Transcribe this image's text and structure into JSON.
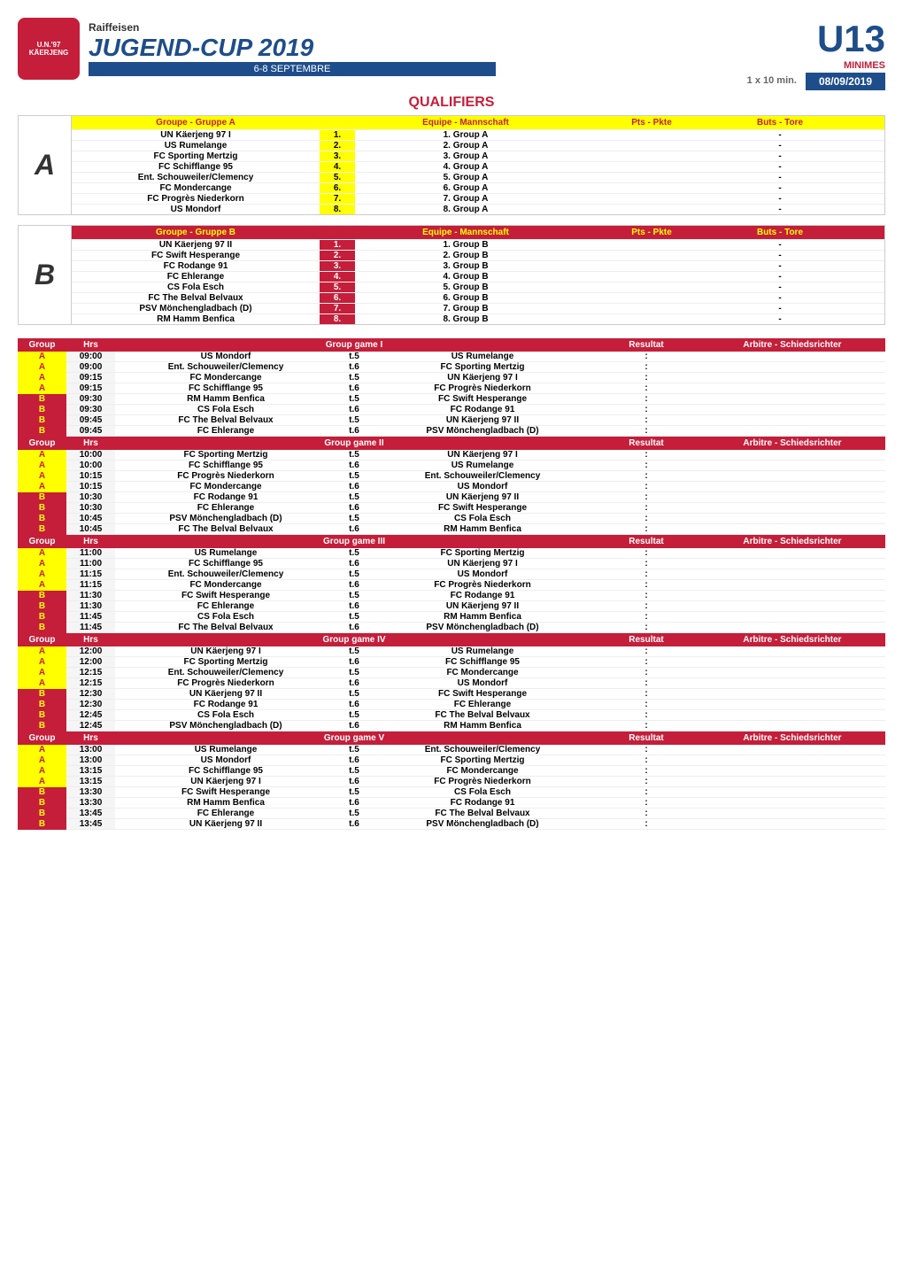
{
  "header": {
    "logo_line1": "U.N.'97",
    "logo_line2": "KÄERJENG",
    "sponsor": "Raiffeisen",
    "title": "JUGEND-CUP 2019",
    "dates_banner": "6-8 SEPTEMBRE",
    "age": "U13",
    "category": "MINIMES",
    "duration": "1 x 10 min.",
    "date": "08/09/2019",
    "section_title": "QUALIFIERS"
  },
  "group_headers": {
    "groupe": "Groupe - Gruppe",
    "equipe": "Equipe - Mannschaft",
    "pts": "Pts - Pkte",
    "buts": "Buts - Tore"
  },
  "groupA": {
    "letter": "A",
    "name": "Groupe - Gruppe A",
    "teams": [
      {
        "n": "1.",
        "name": "UN Käerjeng 97  I",
        "eq": "1. Group A",
        "buts": "-"
      },
      {
        "n": "2.",
        "name": "US Rumelange",
        "eq": "2. Group A",
        "buts": "-"
      },
      {
        "n": "3.",
        "name": "FC Sporting Mertzig",
        "eq": "3. Group A",
        "buts": "-"
      },
      {
        "n": "4.",
        "name": "FC Schifflange 95",
        "eq": "4. Group A",
        "buts": "-"
      },
      {
        "n": "5.",
        "name": "Ent. Schouweiler/Clemency",
        "eq": "5. Group A",
        "buts": "-"
      },
      {
        "n": "6.",
        "name": "FC Mondercange",
        "eq": "6. Group A",
        "buts": "-"
      },
      {
        "n": "7.",
        "name": "FC Progrès Niederkorn",
        "eq": "7. Group A",
        "buts": "-"
      },
      {
        "n": "8.",
        "name": "US Mondorf",
        "eq": "8. Group A",
        "buts": "-"
      }
    ]
  },
  "groupB": {
    "letter": "B",
    "name": "Groupe - Gruppe B",
    "teams": [
      {
        "n": "1.",
        "name": "UN Käerjeng 97  II",
        "eq": "1. Group B",
        "buts": "-"
      },
      {
        "n": "2.",
        "name": "FC Swift Hesperange",
        "eq": "2. Group B",
        "buts": "-"
      },
      {
        "n": "3.",
        "name": "FC Rodange 91",
        "eq": "3. Group B",
        "buts": "-"
      },
      {
        "n": "4.",
        "name": "FC Ehlerange",
        "eq": "4. Group B",
        "buts": "-"
      },
      {
        "n": "5.",
        "name": "CS Fola Esch",
        "eq": "5. Group B",
        "buts": "-"
      },
      {
        "n": "6.",
        "name": "FC The Belval Belvaux",
        "eq": "6. Group B",
        "buts": "-"
      },
      {
        "n": "7.",
        "name": "PSV Mönchengladbach (D)",
        "eq": "7. Group B",
        "buts": "-"
      },
      {
        "n": "8.",
        "name": "RM Hamm Benfica",
        "eq": "8. Group B",
        "buts": "-"
      }
    ]
  },
  "sched_headers": {
    "group": "Group",
    "hrs": "Hrs",
    "resultat": "Resultat",
    "arbitre": "Arbitre - Schiedsrichter"
  },
  "games": [
    {
      "title": "Group game I",
      "rows": [
        {
          "g": "A",
          "h": "09:00",
          "t1": "US Mondorf",
          "f": "t.5",
          "t2": "US Rumelange",
          "r": ":"
        },
        {
          "g": "A",
          "h": "09:00",
          "t1": "Ent. Schouweiler/Clemency",
          "f": "t.6",
          "t2": "FC Sporting Mertzig",
          "r": ":"
        },
        {
          "g": "A",
          "h": "09:15",
          "t1": "FC Mondercange",
          "f": "t.5",
          "t2": "UN Käerjeng 97  I",
          "r": ":"
        },
        {
          "g": "A",
          "h": "09:15",
          "t1": "FC Schifflange 95",
          "f": "t.6",
          "t2": "FC Progrès Niederkorn",
          "r": ":"
        },
        {
          "g": "B",
          "h": "09:30",
          "t1": "RM Hamm Benfica",
          "f": "t.5",
          "t2": "FC Swift Hesperange",
          "r": ":"
        },
        {
          "g": "B",
          "h": "09:30",
          "t1": "CS Fola Esch",
          "f": "t.6",
          "t2": "FC Rodange 91",
          "r": ":"
        },
        {
          "g": "B",
          "h": "09:45",
          "t1": "FC The Belval Belvaux",
          "f": "t.5",
          "t2": "UN Käerjeng 97  II",
          "r": ":"
        },
        {
          "g": "B",
          "h": "09:45",
          "t1": "FC Ehlerange",
          "f": "t.6",
          "t2": "PSV Mönchengladbach (D)",
          "r": ":"
        }
      ]
    },
    {
      "title": "Group game II",
      "rows": [
        {
          "g": "A",
          "h": "10:00",
          "t1": "FC Sporting Mertzig",
          "f": "t.5",
          "t2": "UN Käerjeng 97  I",
          "r": ":"
        },
        {
          "g": "A",
          "h": "10:00",
          "t1": "FC Schifflange 95",
          "f": "t.6",
          "t2": "US Rumelange",
          "r": ":"
        },
        {
          "g": "A",
          "h": "10:15",
          "t1": "FC Progrès Niederkorn",
          "f": "t.5",
          "t2": "Ent. Schouweiler/Clemency",
          "r": ":"
        },
        {
          "g": "A",
          "h": "10:15",
          "t1": "FC Mondercange",
          "f": "t.6",
          "t2": "US Mondorf",
          "r": ":"
        },
        {
          "g": "B",
          "h": "10:30",
          "t1": "FC Rodange 91",
          "f": "t.5",
          "t2": "UN Käerjeng 97  II",
          "r": ":"
        },
        {
          "g": "B",
          "h": "10:30",
          "t1": "FC Ehlerange",
          "f": "t.6",
          "t2": "FC Swift Hesperange",
          "r": ":"
        },
        {
          "g": "B",
          "h": "10:45",
          "t1": "PSV Mönchengladbach (D)",
          "f": "t.5",
          "t2": "CS Fola Esch",
          "r": ":"
        },
        {
          "g": "B",
          "h": "10:45",
          "t1": "FC The Belval Belvaux",
          "f": "t.6",
          "t2": "RM Hamm Benfica",
          "r": ":"
        }
      ]
    },
    {
      "title": "Group game III",
      "rows": [
        {
          "g": "A",
          "h": "11:00",
          "t1": "US Rumelange",
          "f": "t.5",
          "t2": "FC Sporting Mertzig",
          "r": ":"
        },
        {
          "g": "A",
          "h": "11:00",
          "t1": "FC Schifflange 95",
          "f": "t.6",
          "t2": "UN Käerjeng 97  I",
          "r": ":"
        },
        {
          "g": "A",
          "h": "11:15",
          "t1": "Ent. Schouweiler/Clemency",
          "f": "t.5",
          "t2": "US Mondorf",
          "r": ":"
        },
        {
          "g": "A",
          "h": "11:15",
          "t1": "FC Mondercange",
          "f": "t.6",
          "t2": "FC Progrès Niederkorn",
          "r": ":"
        },
        {
          "g": "B",
          "h": "11:30",
          "t1": "FC Swift Hesperange",
          "f": "t.5",
          "t2": "FC Rodange 91",
          "r": ":"
        },
        {
          "g": "B",
          "h": "11:30",
          "t1": "FC Ehlerange",
          "f": "t.6",
          "t2": "UN Käerjeng 97  II",
          "r": ":"
        },
        {
          "g": "B",
          "h": "11:45",
          "t1": "CS Fola Esch",
          "f": "t.5",
          "t2": "RM Hamm Benfica",
          "r": ":"
        },
        {
          "g": "B",
          "h": "11:45",
          "t1": "FC The Belval Belvaux",
          "f": "t.6",
          "t2": "PSV Mönchengladbach (D)",
          "r": ":"
        }
      ]
    },
    {
      "title": "Group game IV",
      "rows": [
        {
          "g": "A",
          "h": "12:00",
          "t1": "UN Käerjeng 97  I",
          "f": "t.5",
          "t2": "US Rumelange",
          "r": ":"
        },
        {
          "g": "A",
          "h": "12:00",
          "t1": "FC Sporting Mertzig",
          "f": "t.6",
          "t2": "FC Schifflange 95",
          "r": ":"
        },
        {
          "g": "A",
          "h": "12:15",
          "t1": "Ent. Schouweiler/Clemency",
          "f": "t.5",
          "t2": "FC Mondercange",
          "r": ":"
        },
        {
          "g": "A",
          "h": "12:15",
          "t1": "FC Progrès Niederkorn",
          "f": "t.6",
          "t2": "US Mondorf",
          "r": ":"
        },
        {
          "g": "B",
          "h": "12:30",
          "t1": "UN Käerjeng 97  II",
          "f": "t.5",
          "t2": "FC Swift Hesperange",
          "r": ":"
        },
        {
          "g": "B",
          "h": "12:30",
          "t1": "FC Rodange 91",
          "f": "t.6",
          "t2": "FC Ehlerange",
          "r": ":"
        },
        {
          "g": "B",
          "h": "12:45",
          "t1": "CS Fola Esch",
          "f": "t.5",
          "t2": "FC The Belval Belvaux",
          "r": ":"
        },
        {
          "g": "B",
          "h": "12:45",
          "t1": "PSV Mönchengladbach (D)",
          "f": "t.6",
          "t2": "RM Hamm Benfica",
          "r": ":"
        }
      ]
    },
    {
      "title": "Group game V",
      "rows": [
        {
          "g": "A",
          "h": "13:00",
          "t1": "US Rumelange",
          "f": "t.5",
          "t2": "Ent. Schouweiler/Clemency",
          "r": ":"
        },
        {
          "g": "A",
          "h": "13:00",
          "t1": "US Mondorf",
          "f": "t.6",
          "t2": "FC Sporting Mertzig",
          "r": ":"
        },
        {
          "g": "A",
          "h": "13:15",
          "t1": "FC Schifflange 95",
          "f": "t.5",
          "t2": "FC Mondercange",
          "r": ":"
        },
        {
          "g": "A",
          "h": "13:15",
          "t1": "UN Käerjeng 97  I",
          "f": "t.6",
          "t2": "FC Progrès Niederkorn",
          "r": ":"
        },
        {
          "g": "B",
          "h": "13:30",
          "t1": "FC Swift Hesperange",
          "f": "t.5",
          "t2": "CS Fola Esch",
          "r": ":"
        },
        {
          "g": "B",
          "h": "13:30",
          "t1": "RM Hamm Benfica",
          "f": "t.6",
          "t2": "FC Rodange 91",
          "r": ":"
        },
        {
          "g": "B",
          "h": "13:45",
          "t1": "FC Ehlerange",
          "f": "t.5",
          "t2": "FC The Belval Belvaux",
          "r": ":"
        },
        {
          "g": "B",
          "h": "13:45",
          "t1": "UN Käerjeng 97  II",
          "f": "t.6",
          "t2": "PSV Mönchengladbach (D)",
          "r": ":"
        }
      ]
    }
  ]
}
